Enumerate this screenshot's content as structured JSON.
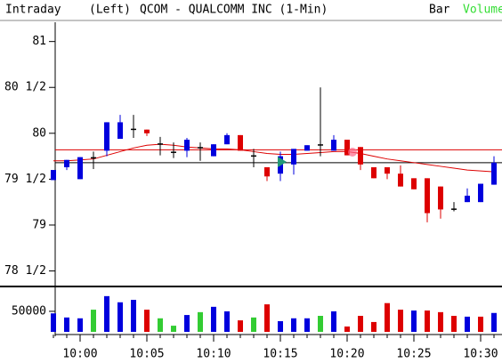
{
  "header": {
    "mode": "Intraday",
    "side": "(Left)",
    "title": "QCOM - QUALCOMM INC  (1-Min)",
    "style": "Bar",
    "volume": "Volume",
    "volume_color": "#33dd33"
  },
  "chart_data": [
    {
      "type": "candlestick",
      "open": [
        79.49,
        79.63,
        79.5,
        79.74,
        79.81,
        79.94,
        80.05,
        80.04,
        79.89,
        79.8,
        79.81,
        79.85,
        79.75,
        79.88,
        79.98,
        79.76,
        79.63,
        79.56,
        79.66,
        79.81,
        79.88,
        79.81,
        79.93,
        79.85,
        79.63,
        79.63,
        79.56,
        79.51,
        79.51,
        79.42,
        79.18,
        79.25,
        79.25,
        79.44
      ],
      "high": [
        79.6,
        79.71,
        79.74,
        79.8,
        80.12,
        80.2,
        80.2,
        80.04,
        79.96,
        79.9,
        79.95,
        79.9,
        79.88,
        80.0,
        79.98,
        79.83,
        79.63,
        79.8,
        79.83,
        79.87,
        80.5,
        79.98,
        79.93,
        79.85,
        79.63,
        79.63,
        79.65,
        79.51,
        79.51,
        79.42,
        79.25,
        79.4,
        79.45,
        79.75
      ],
      "low": [
        79.49,
        79.6,
        79.5,
        79.61,
        79.75,
        79.94,
        79.95,
        79.97,
        79.76,
        79.73,
        79.74,
        79.7,
        79.75,
        79.88,
        79.81,
        79.63,
        79.48,
        79.48,
        79.55,
        79.81,
        79.75,
        79.81,
        79.76,
        79.6,
        79.51,
        79.5,
        79.42,
        79.39,
        79.03,
        79.07,
        79.15,
        79.25,
        79.25,
        79.44
      ],
      "close": [
        79.6,
        79.71,
        79.74,
        79.74,
        80.12,
        80.12,
        80.05,
        80.0,
        79.89,
        79.8,
        79.93,
        79.85,
        79.88,
        79.98,
        79.81,
        79.76,
        79.53,
        79.75,
        79.83,
        79.87,
        79.88,
        79.93,
        79.76,
        79.66,
        79.51,
        79.56,
        79.42,
        79.39,
        79.13,
        79.17,
        79.18,
        79.32,
        79.45,
        79.68
      ],
      "up_color": "#0000dd",
      "down_color": "#dd0000",
      "flat_color": "#000000",
      "ma": {
        "color": "#dd0000",
        "values": [
          79.7,
          79.7,
          79.71,
          79.72,
          79.76,
          79.8,
          79.84,
          79.87,
          79.88,
          79.87,
          79.85,
          79.84,
          79.83,
          79.83,
          79.82,
          79.8,
          79.78,
          79.77,
          79.77,
          79.78,
          79.79,
          79.8,
          79.8,
          79.78,
          79.75,
          79.72,
          79.7,
          79.68,
          79.66,
          79.64,
          79.62,
          79.6,
          79.59,
          79.58
        ]
      },
      "hlines": [
        {
          "value": 79.82,
          "color": "#dd0000"
        },
        {
          "value": 79.68,
          "color": "#000000"
        }
      ],
      "ylim": [
        78.35,
        81.21
      ],
      "yticks": [
        81,
        {
          "value": 80.5,
          "label": "80 1/2"
        },
        80,
        {
          "value": 79.5,
          "label": "79 1/2"
        },
        79,
        {
          "value": 78.5,
          "label": "78 1/2"
        }
      ]
    },
    {
      "type": "bar",
      "categories": [
        null,
        null,
        "10:00",
        null,
        null,
        null,
        null,
        "10:05",
        null,
        null,
        null,
        null,
        "10:10",
        null,
        null,
        null,
        null,
        "10:15",
        null,
        null,
        null,
        null,
        "10:20",
        null,
        null,
        null,
        null,
        "10:25",
        null,
        null,
        null,
        null,
        "10:30",
        null
      ],
      "values": [
        45000,
        35000,
        33000,
        54000,
        87000,
        72000,
        78000,
        54000,
        33000,
        15000,
        41000,
        48000,
        61000,
        50000,
        28000,
        35000,
        67000,
        26000,
        33000,
        33000,
        39000,
        50000,
        13000,
        39000,
        24000,
        70000,
        54000,
        52000,
        52000,
        48000,
        39000,
        37000,
        37000,
        46000
      ],
      "colors": [
        "#0000dd",
        "#0000dd",
        "#0000dd",
        "#33cc33",
        "#0000dd",
        "#0000dd",
        "#0000dd",
        "#dd0000",
        "#33cc33",
        "#33cc33",
        "#0000dd",
        "#33cc33",
        "#0000dd",
        "#0000dd",
        "#dd0000",
        "#33cc33",
        "#dd0000",
        "#0000dd",
        "#0000dd",
        "#0000dd",
        "#33cc33",
        "#0000dd",
        "#dd0000",
        "#dd0000",
        "#dd0000",
        "#dd0000",
        "#dd0000",
        "#0000dd",
        "#dd0000",
        "#dd0000",
        "#dd0000",
        "#0000dd",
        "#dd0000",
        "#0000dd"
      ],
      "ylim": [
        0,
        104000
      ],
      "yticks": [
        50000
      ]
    }
  ]
}
